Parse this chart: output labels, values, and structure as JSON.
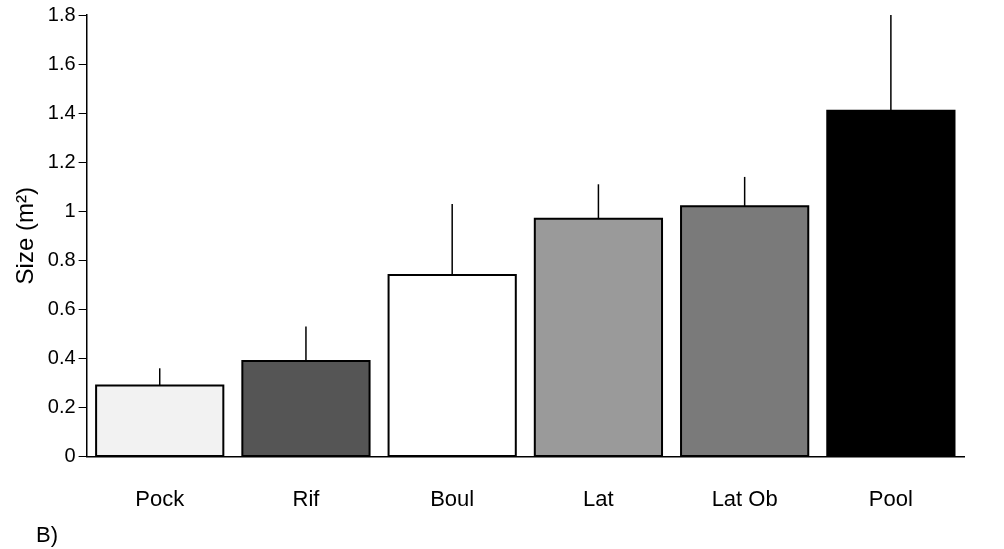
{
  "chart_data": {
    "type": "bar",
    "ylabel": "Size (m²)",
    "categories": [
      "Pock",
      "Rif",
      "Boul",
      "Lat",
      "Lat Ob",
      "Pool"
    ],
    "values": [
      0.29,
      0.39,
      0.74,
      0.97,
      1.02,
      1.41
    ],
    "errors": [
      [
        0.29,
        0.36
      ],
      [
        0.39,
        0.53
      ],
      [
        0.74,
        1.03
      ],
      [
        0.97,
        1.11
      ],
      [
        1.02,
        1.14
      ],
      [
        1.41,
        1.8
      ]
    ],
    "colors": [
      "#f2f2f2",
      "#555555",
      "#ffffff",
      "#9a9a9a",
      "#7a7a7a",
      "#000000"
    ],
    "ylim": [
      0,
      1.8
    ],
    "yticks": [
      0,
      0.2,
      0.4,
      0.6,
      0.8,
      1,
      1.2,
      1.4,
      1.6,
      1.8
    ],
    "annotations": [
      "B)"
    ],
    "grid": false,
    "legend": false
  }
}
